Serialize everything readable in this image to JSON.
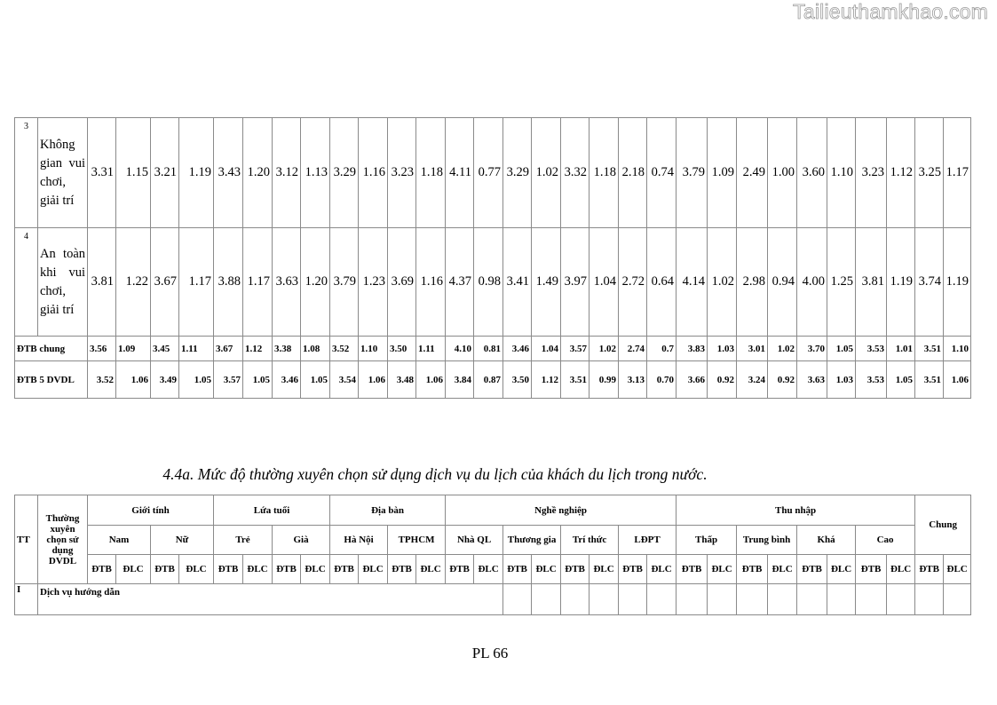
{
  "watermark": "Tailieuthamkhao.com",
  "table1": {
    "rows": [
      {
        "tt": "3",
        "name": "Không gian vui chơi, giải trí",
        "values": [
          "3.31",
          "1.15",
          "3.21",
          "1.19",
          "3.43",
          "1.20",
          "3.12",
          "1.13",
          "3.29",
          "1.16",
          "3.23",
          "1.18",
          "4.11",
          "0.77",
          "3.29",
          "1.02",
          "3.32",
          "1.18",
          "2.18",
          "0.74",
          "3.79",
          "1.09",
          "2.49",
          "1.00",
          "3.60",
          "1.10",
          "3.23",
          "1.12",
          "3.25",
          "1.17"
        ]
      },
      {
        "tt": "4",
        "name": "An toàn khi vui chơi, giải trí",
        "values": [
          "3.81",
          "1.22",
          "3.67",
          "1.17",
          "3.88",
          "1.17",
          "3.63",
          "1.20",
          "3.79",
          "1.23",
          "3.69",
          "1.16",
          "4.37",
          "0.98",
          "3.41",
          "1.49",
          "3.97",
          "1.04",
          "2.72",
          "0.64",
          "4.14",
          "1.02",
          "2.98",
          "0.94",
          "4.00",
          "1.25",
          "3.81",
          "1.19",
          "3.74",
          "1.19"
        ]
      }
    ],
    "summary": [
      {
        "label": "ĐTB chung",
        "values": [
          "3.56",
          "1.09",
          "3.45",
          "1.11",
          "3.67",
          "1.12",
          "3.38",
          "1.08",
          "3.52",
          "1.10",
          "3.50",
          "1.11",
          "4.10",
          "0.81",
          "3.46",
          "1.04",
          "3.57",
          "1.02",
          "2.74",
          "0.7",
          "3.83",
          "1.03",
          "3.01",
          "1.02",
          "3.70",
          "1.05",
          "3.53",
          "1.01",
          "3.51",
          "1.10"
        ]
      },
      {
        "label": "ĐTB 5 DVDL",
        "values": [
          "3.52",
          "1.06",
          "3.49",
          "1.05",
          "3.57",
          "1.05",
          "3.46",
          "1.05",
          "3.54",
          "1.06",
          "3.48",
          "1.06",
          "3.84",
          "0.87",
          "3.50",
          "1.12",
          "3.51",
          "0.99",
          "3.13",
          "0.70",
          "3.66",
          "0.92",
          "3.24",
          "0.92",
          "3.63",
          "1.03",
          "3.53",
          "1.05",
          "3.51",
          "1.06"
        ]
      }
    ]
  },
  "caption": "4.4a. Mức độ thường xuyên chọn sử dụng dịch vụ du lịch của khách du lịch trong nước.",
  "table2": {
    "tt_header": "TT",
    "item_header": "Thường xuyên chọn sử dụng DVDL",
    "groups": [
      {
        "label": "Giới tính",
        "subs": [
          "Nam",
          "Nữ"
        ]
      },
      {
        "label": "Lứa tuổi",
        "subs": [
          "Trẻ",
          "Già"
        ]
      },
      {
        "label": "Địa bàn",
        "subs": [
          "Hà Nội",
          "TPHCM"
        ]
      },
      {
        "label": "Nghề nghiệp",
        "subs": [
          "Nhà QL",
          "Thương gia",
          "Trí thức",
          "LĐPT"
        ]
      },
      {
        "label": "Thu nhập",
        "subs": [
          "Thấp",
          "Trung bình",
          "Khá",
          "Cao"
        ]
      }
    ],
    "overall_header": "Chung",
    "stat_labels": [
      "ĐTB",
      "ĐLC"
    ],
    "section": {
      "tt": "I",
      "label": "Dịch vụ hướng dẫn"
    }
  },
  "page_number": "PL 66"
}
